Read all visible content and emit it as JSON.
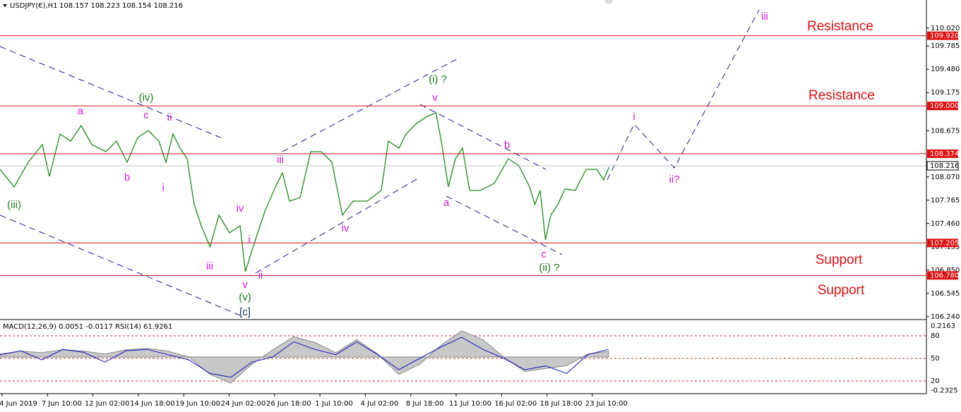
{
  "header": {
    "symbol": "USDJPY(€),H1",
    "ohlc": "108.157 108.223 108.154 108.216"
  },
  "price_axis": {
    "ticks": [
      {
        "value": 110.02,
        "label": "110.020"
      },
      109.785,
      {
        "value": 109.48,
        "label": "109.480"
      },
      109.175,
      108.675,
      {
        "value": 108.07,
        "label": "108.070"
      },
      107.765,
      {
        "value": 107.46,
        "label": "107.460"
      },
      107.155,
      {
        "value": 106.85,
        "label": "106.850"
      },
      106.545,
      {
        "value": 106.24,
        "label": "106.240"
      }
    ]
  },
  "levels": [
    {
      "value": 109.92,
      "label": "109.920"
    },
    {
      "value": 109.0,
      "label": "109.000"
    },
    108.374,
    107.205,
    {
      "value": 106.78,
      "label": "106.780"
    }
  ],
  "current_price": 108.216,
  "price_path": {
    "bar": [
      0,
      8,
      16,
      24,
      28,
      34,
      40,
      46,
      52,
      60,
      66,
      72,
      78,
      84,
      90,
      94,
      98,
      102,
      106,
      110,
      114,
      119,
      124,
      130,
      136,
      139,
      144,
      150,
      156,
      160,
      164,
      170,
      176,
      182,
      188,
      194,
      200,
      208,
      216,
      220,
      226,
      230,
      236,
      242,
      247,
      250,
      254,
      258,
      262,
      266,
      272,
      280,
      288,
      294,
      300,
      303,
      306,
      309,
      312,
      316,
      320,
      326,
      332,
      338,
      342,
      345
    ],
    "values": [
      108.17,
      107.939,
      108.262,
      108.493,
      108.077,
      108.632,
      108.539,
      108.743,
      108.493,
      108.401,
      108.539,
      108.262,
      108.586,
      108.678,
      108.539,
      108.262,
      108.632,
      108.447,
      108.308,
      107.708,
      107.43,
      107.153,
      107.569,
      107.338,
      107.43,
      106.83,
      107.199,
      107.615,
      107.939,
      108.124,
      107.754,
      107.8,
      108.401,
      108.401,
      108.262,
      107.569,
      107.754,
      107.754,
      107.893,
      108.539,
      108.447,
      108.632,
      108.771,
      108.863,
      108.909,
      108.539,
      107.939,
      108.308,
      108.447,
      107.893,
      107.893,
      107.985,
      108.308,
      108.216,
      107.939,
      107.708,
      107.893,
      107.246,
      107.569,
      107.708,
      107.911,
      107.893,
      108.17,
      108.17,
      108.031,
      108.198
    ]
  },
  "time_axis": [
    "4 Jun 2019",
    "7 Jun 10:00",
    "12 Jun 02:00",
    "14 Jun 18:00",
    "19 Jun 10:00",
    "24 Jun 02:00",
    "26 Jun 18:00",
    "1 Jul 10:00",
    "4 Jul 02:00",
    "8 Jul 18:00",
    "11 Jul 10:00",
    "16 Jul 02:00",
    "18 Jul 18:00",
    "23 Jul 10:00"
  ],
  "annotations": [
    {
      "text": "(iii)",
      "color": "#1e7b1e"
    },
    {
      "text": "a",
      "color": "#d61ad6"
    },
    {
      "text": "(iv)",
      "color": "#1e7b1e"
    },
    {
      "text": "c",
      "color": "#d61ad6"
    },
    {
      "text": "ii",
      "color": "#d61ad6"
    },
    {
      "text": "b",
      "color": "#d61ad6"
    },
    {
      "text": "i",
      "color": "#d61ad6"
    },
    {
      "text": "iii",
      "color": "#d61ad6"
    },
    {
      "text": "iv",
      "color": "#d61ad6"
    },
    {
      "text": "i",
      "color": "#d61ad6"
    },
    {
      "text": "v",
      "color": "#d61ad6"
    },
    {
      "text": "ii",
      "color": "#d61ad6"
    },
    {
      "text": "(v)",
      "color": "#1e7b1e"
    },
    {
      "text": "[c]",
      "color": "#1a3a5a"
    },
    {
      "text": "iii",
      "color": "#d61ad6"
    },
    {
      "text": "iv",
      "color": "#d61ad6"
    },
    {
      "text": "(i) ?",
      "color": "#1e7b1e"
    },
    {
      "text": "v",
      "color": "#d61ad6"
    },
    {
      "text": "a",
      "color": "#d61ad6"
    },
    {
      "text": "b",
      "color": "#d61ad6"
    },
    {
      "text": "c",
      "color": "#d61ad6"
    },
    {
      "text": "(ii) ?",
      "color": "#1e7b1e"
    },
    {
      "text": "i",
      "color": "#d61ad6"
    },
    {
      "text": "ii?",
      "color": "#d61ad6"
    },
    {
      "text": "iii",
      "color": "#d61ad6"
    },
    {
      "text": "Resistance",
      "color": "#e01010"
    },
    {
      "text": "Resistance",
      "color": "#e01010"
    },
    {
      "text": "Support",
      "color": "#e01010"
    },
    {
      "text": "Support",
      "color": "#e01010"
    }
  ],
  "indicator": {
    "title": "MACD(12,26,9) 0.0051 -0.0117 RSI(14) 61.9261",
    "macd_ticks": [
      0.2163,
      -0.2325
    ],
    "rsi_levels": [
      80,
      50,
      20
    ],
    "macd": [
      0.02,
      0.04,
      0.03,
      0.05,
      0.04,
      0.02,
      0.05,
      0.06,
      0.04,
      0.0,
      -0.12,
      -0.18,
      -0.05,
      0.05,
      0.14,
      0.1,
      0.03,
      0.12,
      0.02,
      -0.12,
      -0.05,
      0.08,
      0.18,
      0.12,
      0.0,
      -0.1,
      -0.08,
      -0.06,
      0.02,
      0.04
    ],
    "rsi": [
      55,
      60,
      48,
      62,
      58,
      45,
      60,
      62,
      55,
      48,
      30,
      25,
      45,
      52,
      72,
      62,
      55,
      72,
      55,
      35,
      50,
      65,
      78,
      62,
      50,
      35,
      40,
      30,
      55,
      62
    ]
  }
}
